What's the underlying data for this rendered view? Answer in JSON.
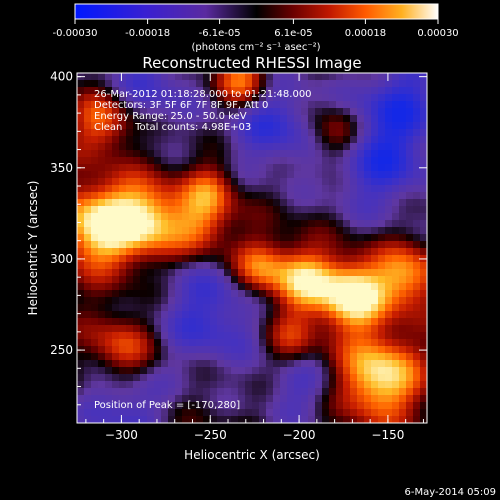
{
  "colorbar": {
    "tick_labels": [
      "-0.00030",
      "-0.00018",
      "-6.1e-05",
      "6.1e-05",
      "0.00018",
      "0.00030"
    ],
    "tick_values": [
      -0.0003,
      -0.00018,
      -6.1e-05,
      6.1e-05,
      0.00018,
      0.0003
    ],
    "range": [
      -0.0003,
      0.0003
    ],
    "units_label": "(photons cm⁻² s⁻¹ asec⁻²)",
    "colormap": [
      "#0018ff",
      "#3a20d0",
      "#5a2aa0",
      "#000000",
      "#4a0000",
      "#b01000",
      "#ff3c00",
      "#ff9a00",
      "#ffe050",
      "#ffffff"
    ]
  },
  "chart_data": {
    "type": "heatmap",
    "title": "Reconstructed RHESSI Image",
    "xlabel": "Heliocentric X (arcsec)",
    "ylabel": "Heliocentric Y (arcsec)",
    "xlim": [
      -325,
      -128
    ],
    "ylim": [
      210,
      402
    ],
    "x_ticks": [
      -300,
      -250,
      -200,
      -150
    ],
    "y_ticks": [
      250,
      300,
      350,
      400
    ],
    "grid": false,
    "annotations": [
      "26-Mar-2012 01:18:28.000 to 01:21:48.000",
      "Detectors: 3F 5F 6F 7F 8F 9F, Att 0",
      "Energy Range: 25.0 - 50.0 keV",
      "Clean    Total counts: 4.98E+03"
    ],
    "peak_label": "Position of Peak = [-170,280]",
    "peak": [
      -170,
      280
    ],
    "sources": [
      {
        "x": -312,
        "y": 318,
        "amp": 1.25,
        "s": 16
      },
      {
        "x": -285,
        "y": 322,
        "amp": 1.0,
        "s": 14
      },
      {
        "x": -255,
        "y": 318,
        "amp": 0.7,
        "s": 12
      },
      {
        "x": -170,
        "y": 280,
        "amp": 1.35,
        "s": 13
      },
      {
        "x": -197,
        "y": 288,
        "amp": 1.0,
        "s": 12
      },
      {
        "x": -140,
        "y": 290,
        "amp": 0.9,
        "s": 12
      },
      {
        "x": -222,
        "y": 295,
        "amp": 0.85,
        "s": 11
      },
      {
        "x": -155,
        "y": 235,
        "amp": 1.2,
        "s": 16
      },
      {
        "x": -310,
        "y": 375,
        "amp": 0.8,
        "s": 12
      },
      {
        "x": -232,
        "y": 398,
        "amp": 0.9,
        "s": 11
      },
      {
        "x": -250,
        "y": 338,
        "amp": 0.6,
        "s": 10
      },
      {
        "x": -180,
        "y": 368,
        "amp": 0.75,
        "s": 11
      },
      {
        "x": -300,
        "y": 250,
        "amp": 0.7,
        "s": 13
      },
      {
        "x": -205,
        "y": 255,
        "amp": 0.55,
        "s": 11
      },
      {
        "x": -285,
        "y": 395,
        "amp": -0.55,
        "s": 20
      },
      {
        "x": -215,
        "y": 375,
        "amp": -0.7,
        "s": 20
      },
      {
        "x": -155,
        "y": 355,
        "amp": -0.8,
        "s": 22
      },
      {
        "x": -250,
        "y": 270,
        "amp": -0.7,
        "s": 22
      },
      {
        "x": -300,
        "y": 220,
        "amp": -0.6,
        "s": 18
      },
      {
        "x": -200,
        "y": 230,
        "amp": -0.5,
        "s": 16
      },
      {
        "x": -140,
        "y": 390,
        "amp": -0.6,
        "s": 18
      }
    ]
  },
  "footer_date": "6-May-2014 05:09"
}
